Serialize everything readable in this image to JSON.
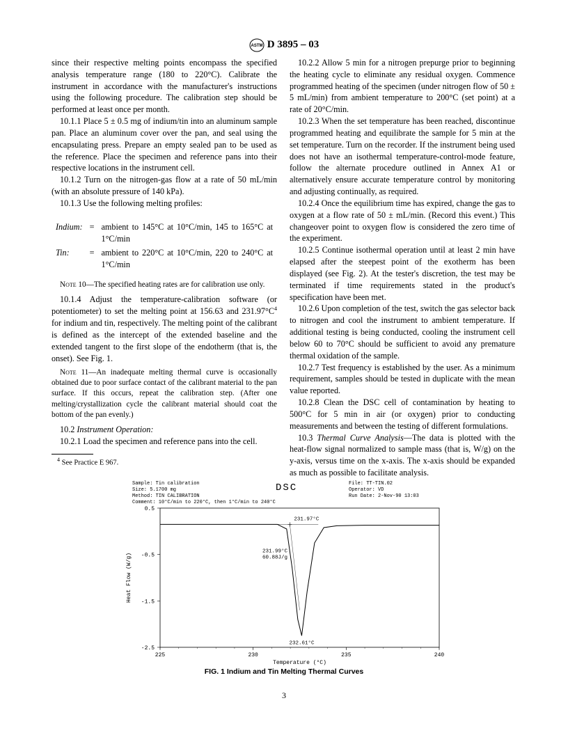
{
  "header": {
    "designation": "D 3895 – 03"
  },
  "col1": {
    "p0": "since their respective melting points encompass the specified analysis temperature range (180 to 220°C). Calibrate the instrument in accordance with the manufacturer's instructions using the following procedure. The calibration step should be performed at least once per month.",
    "p1": "10.1.1 Place 5 ± 0.5 mg of indium/tin into an aluminum sample pan. Place an aluminum cover over the pan, and seal using the encapsulating press. Prepare an empty sealed pan to be used as the reference. Place the specimen and reference pans into their respective locations in the instrument cell.",
    "p2": "10.1.2 Turn on the nitrogen-gas flow at a rate of 50 mL/min (with an absolute pressure of 140 kPa).",
    "p3": "10.1.3 Use the following melting profiles:",
    "indium_label": "Indium:",
    "indium": "ambient to 145°C at 10°C/min, 145 to 165°C at 1°C/min",
    "tin_label": "Tin:",
    "tin": "ambient to 220°C at 10°C/min, 220 to 240°C at 1°C/min",
    "note10_label": "Note 10—",
    "note10": "The specified heating rates are for calibration use only.",
    "p4a": "10.1.4 Adjust the temperature-calibration software (or potentiometer) to set the melting point at 156.63 and 231.97°C",
    "p4b": " for indium and tin, respectively. The melting point of the calibrant is defined as the intercept of the extended baseline and the extended tangent to the first slope of the endotherm (that is, the onset). See Fig. 1.",
    "note11_label": "Note 11—",
    "note11": "An inadequate melting thermal curve is occasionally obtained due to poor surface contact of the calibrant material to the pan surface. If this occurs, repeat the calibration step. (After one melting/crystallization cycle the calibrant material should coat the bottom of the pan evenly.)",
    "p5_label": "10.2 ",
    "p5_em": "Instrument Operation:",
    "p6": "10.2.1 Load the specimen and reference pans into the cell.",
    "footnote_marker": "4",
    "footnote": " See Practice E 967."
  },
  "col2": {
    "p0": "10.2.2 Allow 5 min for a nitrogen prepurge prior to beginning the heating cycle to eliminate any residual oxygen. Commence programmed heating of the specimen (under nitrogen flow of 50 ± 5 mL/min) from ambient temperature to 200°C (set point) at a rate of 20°C/min.",
    "p1": "10.2.3 When the set temperature has been reached, discontinue programmed heating and equilibrate the sample for 5 min at the set temperature. Turn on the recorder. If the instrument being used does not have an isothermal temperature-control-mode feature, follow the alternate procedure outlined in Annex A1 or alternatively ensure accurate temperature control by monitoring and adjusting continually, as required.",
    "p2": "10.2.4 Once the equilibrium time has expired, change the gas to oxygen at a flow rate of 50 ± mL/min. (Record this event.) This changeover point to oxygen flow is considered the zero time of the experiment.",
    "p3": "10.2.5 Continue isothermal operation until at least 2 min have elapsed after the steepest point of the exotherm has been displayed (see Fig. 2). At the tester's discretion, the test may be terminated if time requirements stated in the product's specification have been met.",
    "p4": "10.2.6 Upon completion of the test, switch the gas selector back to nitrogen and cool the instrument to ambient temperature. If additional testing is being conducted, cooling the instrument cell below 60 to 70°C should be sufficient to avoid any premature thermal oxidation of the sample.",
    "p5": "10.2.7 Test frequency is established by the user. As a minimum requirement, samples should be tested in duplicate with the mean value reported.",
    "p6": "10.2.8 Clean the DSC cell of contamination by heating to 500°C for 5 min in air (or oxygen) prior to conducting measurements and between the testing of different formulations.",
    "p7_label": "10.3 ",
    "p7_em": "Thermal Curve Analysis",
    "p7": "—The data is plotted with the heat-flow signal normalized to sample mass (that is, W/g) on the y-axis, versus time on the x-axis. The x-axis should be expanded as much as possible to facilitate analysis."
  },
  "figure": {
    "caption": "FIG. 1 Indium and Tin Melting Thermal Curves",
    "dsc_logo": "DSC",
    "meta": {
      "sample": "Sample:  Tin    calibration",
      "size": "Size:    5.1700  mg",
      "method": "Method:  TIN    CALIBRATION",
      "comment": "Comment: 10°C/min to 220°C, then 1°C/min to 240°C",
      "file": "File:  TT-TIN.02",
      "operator": "Operator: VD",
      "rundate": "Run Date: 2-Nov-90  13:03"
    },
    "xlabel": "Temperature (°C)",
    "ylabel": "Heat Flow (W/g)",
    "xticks": [
      "225",
      "230",
      "235",
      "240"
    ],
    "yticks": [
      "0.5",
      "-0.5",
      "-1.5",
      "-2.5"
    ],
    "annotations": {
      "onset": "231.97°C",
      "peak_top1": "231.99°C",
      "peak_top2": "60.88J/g",
      "peak_min": "232.61°C"
    },
    "xlim": [
      225,
      240
    ],
    "ylim": [
      -2.5,
      0.5
    ],
    "curve": [
      [
        225,
        0.15
      ],
      [
        228,
        0.15
      ],
      [
        230.5,
        0.15
      ],
      [
        231.3,
        0.15
      ],
      [
        231.8,
        0.05
      ],
      [
        232.1,
        -0.8
      ],
      [
        232.4,
        -1.9
      ],
      [
        232.61,
        -2.25
      ],
      [
        232.9,
        -1.3
      ],
      [
        233.3,
        -0.25
      ],
      [
        233.8,
        0.08
      ],
      [
        234.5,
        0.12
      ],
      [
        236,
        0.13
      ],
      [
        238,
        0.13
      ],
      [
        240,
        0.13
      ]
    ],
    "line_color": "#000000",
    "background": "#ffffff"
  },
  "pagenum": "3"
}
